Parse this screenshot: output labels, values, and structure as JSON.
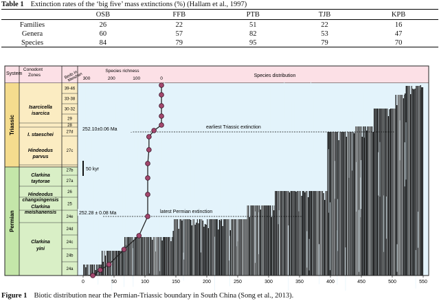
{
  "table": {
    "label": "Table 1",
    "title": "Extinction rates of the ‘big five’ mass extinctions (%) (Hallam et al., 1997)",
    "columns": [
      "",
      "OSB",
      "FFB",
      "PTB",
      "TJB",
      "KPB"
    ],
    "rows": [
      {
        "name": "Families",
        "values": [
          "26",
          "22",
          "51",
          "22",
          "16"
        ]
      },
      {
        "name": "Genera",
        "values": [
          "60",
          "57",
          "82",
          "53",
          "47"
        ]
      },
      {
        "name": "Species",
        "values": [
          "84",
          "79",
          "95",
          "79",
          "70"
        ]
      }
    ]
  },
  "figure": {
    "label": "Figure 1",
    "caption": "Biotic distribution near the Permian-Triassic boundary in South China (Song et al., 2013).",
    "headers": {
      "system": "System",
      "conodont": "Conodont",
      "zones": "Zones",
      "beds": "Beds in",
      "meishan": "Meishan",
      "richness": "Species richness",
      "distribution": "Species distribution"
    },
    "systems": [
      "Triassic",
      "Permian"
    ],
    "zones": [
      {
        "line1": "Isarcicella",
        "line2": "isarcica"
      },
      {
        "line1": "I. staeschei",
        "line2": ""
      },
      {
        "line1": "Hindeodus",
        "line2": "parvus"
      },
      {
        "line1": "Clarkina",
        "line2": "taytorae"
      },
      {
        "line1": "Hindeodus",
        "line2": "changxingensis"
      },
      {
        "line1": "Clarkina",
        "line2": "meishanensis"
      },
      {
        "line1": "Clarkina",
        "line2": "yini"
      }
    ],
    "beds": [
      "39-46",
      "33-38",
      "30-32",
      "29",
      "28",
      "27d",
      "27c",
      "27b",
      "27a",
      "26",
      "25",
      "24e",
      "24d",
      "24c",
      "24b",
      "24a"
    ],
    "richness_ticks": [
      "300",
      "200",
      "100",
      "0"
    ],
    "x_ticks": [
      "0",
      "50",
      "100",
      "150",
      "200",
      "250",
      "300",
      "350",
      "400",
      "450",
      "500",
      "550"
    ],
    "annotations": {
      "date_triassic": "252.10±0.06 Ma",
      "label_triassic": "earliest Triassic extinction",
      "date_permian": "252.28 ± 0.08 Ma",
      "label_permian": "latest Permian extinction",
      "scale": "50 kyr"
    },
    "richness_values": [
      0,
      0,
      0,
      0,
      0,
      30,
      50,
      50,
      55,
      55,
      55,
      55,
      90,
      150,
      210,
      245,
      275
    ],
    "species_max": 550
  }
}
